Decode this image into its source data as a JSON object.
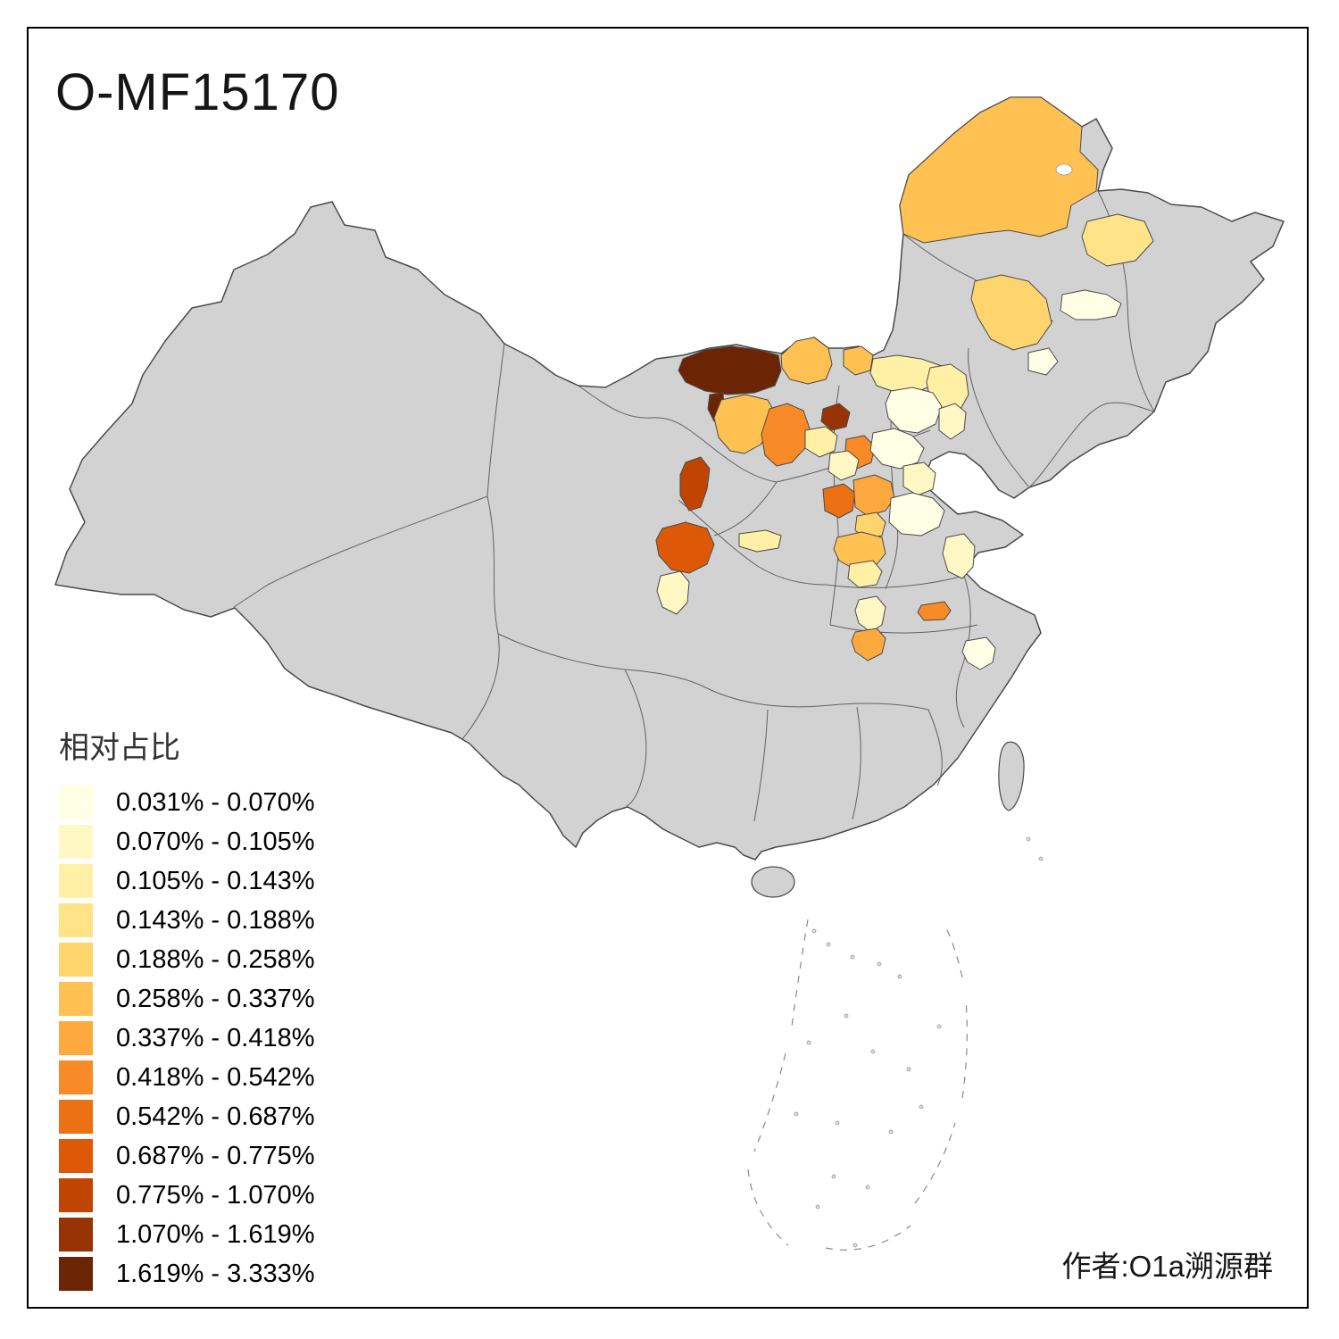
{
  "title": "O-MF15170",
  "attribution": "作者:O1a溯源群",
  "legend": {
    "title": "相对占比",
    "classes": [
      {
        "label": "0.031% - 0.070%",
        "color": "#FFFFE5"
      },
      {
        "label": "0.070% - 0.105%",
        "color": "#FFF8C5"
      },
      {
        "label": "0.105% - 0.143%",
        "color": "#FFF0A6"
      },
      {
        "label": "0.143% - 0.188%",
        "color": "#FEE388"
      },
      {
        "label": "0.188% - 0.258%",
        "color": "#FED46C"
      },
      {
        "label": "0.258% - 0.337%",
        "color": "#FEC152"
      },
      {
        "label": "0.337% - 0.418%",
        "color": "#FEA93D"
      },
      {
        "label": "0.418% - 0.542%",
        "color": "#F88B28"
      },
      {
        "label": "0.542% - 0.687%",
        "color": "#EC7014"
      },
      {
        "label": "0.687% - 0.775%",
        "color": "#DD5807"
      },
      {
        "label": "0.775% - 1.070%",
        "color": "#C04502"
      },
      {
        "label": "1.070% - 1.619%",
        "color": "#983403"
      },
      {
        "label": "1.619% - 3.333%",
        "color": "#6B2504"
      }
    ]
  },
  "map": {
    "land_color": "#D2D2D2",
    "border_color": "#4A4A4A",
    "province_border_color": "#5C5C5C",
    "regions": [
      {
        "id": "r1",
        "class_index": 6
      },
      {
        "id": "r2",
        "class_index": 4
      },
      {
        "id": "r3",
        "class_index": 5
      },
      {
        "id": "r4",
        "class_index": 1
      },
      {
        "id": "r5",
        "class_index": 1
      },
      {
        "id": "r6",
        "class_index": 13
      },
      {
        "id": "r6b",
        "class_index": 13
      },
      {
        "id": "r7",
        "class_index": 6
      },
      {
        "id": "r8",
        "class_index": 6
      },
      {
        "id": "r9",
        "class_index": 3
      },
      {
        "id": "r10",
        "class_index": 3
      },
      {
        "id": "r11",
        "class_index": 1
      },
      {
        "id": "r12",
        "class_index": 2
      },
      {
        "id": "r13",
        "class_index": 6
      },
      {
        "id": "r14",
        "class_index": 8
      },
      {
        "id": "r15",
        "class_index": 12
      },
      {
        "id": "r16",
        "class_index": 3
      },
      {
        "id": "r17",
        "class_index": 11
      },
      {
        "id": "r18",
        "class_index": 8
      },
      {
        "id": "r19",
        "class_index": 2
      },
      {
        "id": "r20",
        "class_index": 1
      },
      {
        "id": "r21",
        "class_index": 2
      },
      {
        "id": "r22",
        "class_index": 9
      },
      {
        "id": "r23",
        "class_index": 7
      },
      {
        "id": "r24",
        "class_index": 5
      },
      {
        "id": "r25",
        "class_index": 1
      },
      {
        "id": "r26",
        "class_index": 2
      },
      {
        "id": "r27",
        "class_index": 10
      },
      {
        "id": "r28",
        "class_index": 3
      },
      {
        "id": "r29",
        "class_index": 2
      },
      {
        "id": "r30",
        "class_index": 6
      },
      {
        "id": "r31",
        "class_index": 3
      },
      {
        "id": "r32",
        "class_index": 8
      },
      {
        "id": "r33",
        "class_index": 2
      },
      {
        "id": "r34",
        "class_index": 7
      },
      {
        "id": "r35",
        "class_index": 1
      }
    ]
  }
}
